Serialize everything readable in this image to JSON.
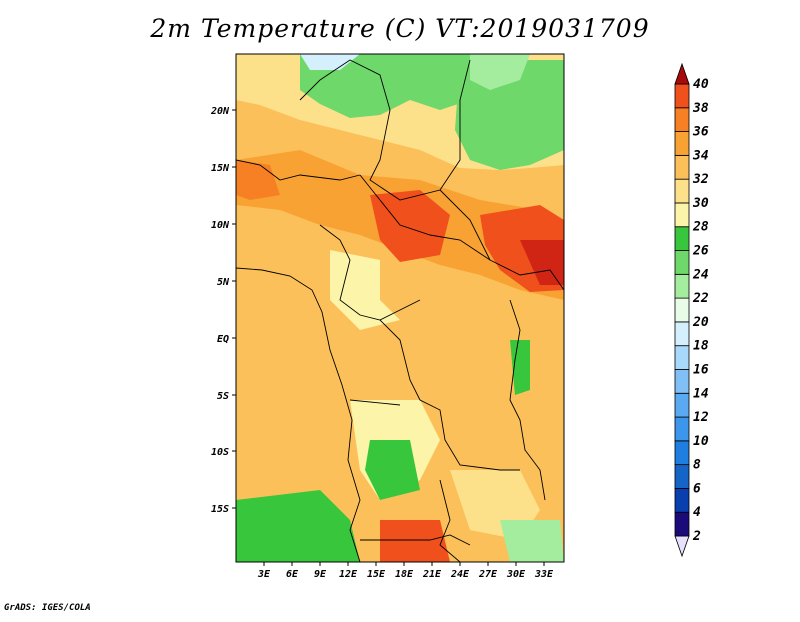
{
  "title": "2m Temperature (C) VT:2019031709",
  "credit": "GrADS: IGES/COLA",
  "map": {
    "lon_range": [
      0,
      36
    ],
    "lat_range": [
      -20,
      25
    ],
    "lon_ticks": [
      "3E",
      "6E",
      "9E",
      "12E",
      "15E",
      "18E",
      "21E",
      "24E",
      "27E",
      "30E",
      "33E"
    ],
    "lat_ticks": [
      "20N",
      "15N",
      "10N",
      "5N",
      "EQ",
      "5S",
      "10S",
      "15S"
    ]
  },
  "colorbar": {
    "levels": [
      "2",
      "4",
      "6",
      "8",
      "10",
      "12",
      "14",
      "16",
      "18",
      "20",
      "22",
      "24",
      "26",
      "28",
      "30",
      "32",
      "34",
      "36",
      "38",
      "40"
    ],
    "colors": [
      "#1a0a7a",
      "#0a3fb0",
      "#1565c8",
      "#1e7fe0",
      "#3c96ec",
      "#5aaaf2",
      "#80c0f6",
      "#a8d8fa",
      "#d4f0fc",
      "#e8fce8",
      "#a4ec9e",
      "#6ed86a",
      "#38c63c",
      "#fcf4a8",
      "#fde08a",
      "#fcc05a",
      "#f9a234",
      "#f78024",
      "#f0501c",
      "#d02414",
      "#a80a0a"
    ]
  }
}
